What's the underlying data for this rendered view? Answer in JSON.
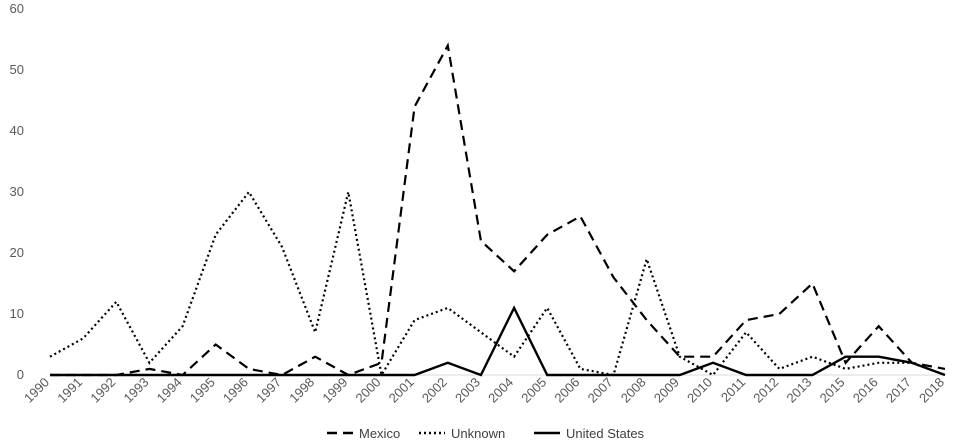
{
  "chart_data": {
    "type": "line",
    "title": "",
    "xlabel": "",
    "ylabel": "",
    "ylim": [
      0,
      60
    ],
    "yticks": [
      0,
      10,
      20,
      30,
      40,
      50,
      60
    ],
    "grid": false,
    "legend_position": "bottom",
    "categories": [
      "1990",
      "1991",
      "1992",
      "1993",
      "1994",
      "1995",
      "1996",
      "1997",
      "1998",
      "1999",
      "2000",
      "2001",
      "2002",
      "2003",
      "2004",
      "2005",
      "2006",
      "2007",
      "2008",
      "2009",
      "2010",
      "2011",
      "2012",
      "2013",
      "2015",
      "2016",
      "2017",
      "2018"
    ],
    "series": [
      {
        "name": "Mexico",
        "style": "dashed",
        "color": "#000000",
        "values": [
          0,
          0,
          0,
          1,
          0,
          5,
          1,
          0,
          3,
          0,
          2,
          44,
          54,
          22,
          17,
          23,
          26,
          16,
          9,
          3,
          3,
          9,
          10,
          15,
          2,
          8,
          2,
          1
        ]
      },
      {
        "name": "Unknown",
        "style": "dotted",
        "color": "#000000",
        "values": [
          3,
          6,
          12,
          2,
          8,
          23,
          30,
          21,
          7,
          30,
          0,
          9,
          11,
          7,
          3,
          11,
          1,
          0,
          19,
          3,
          0,
          7,
          1,
          3,
          1,
          2,
          2,
          0
        ]
      },
      {
        "name": "United States",
        "style": "solid",
        "color": "#000000",
        "values": [
          0,
          0,
          0,
          0,
          0,
          0,
          0,
          0,
          0,
          0,
          0,
          0,
          2,
          0,
          11,
          0,
          0,
          0,
          0,
          0,
          2,
          0,
          0,
          0,
          3,
          3,
          2,
          0
        ]
      }
    ]
  }
}
